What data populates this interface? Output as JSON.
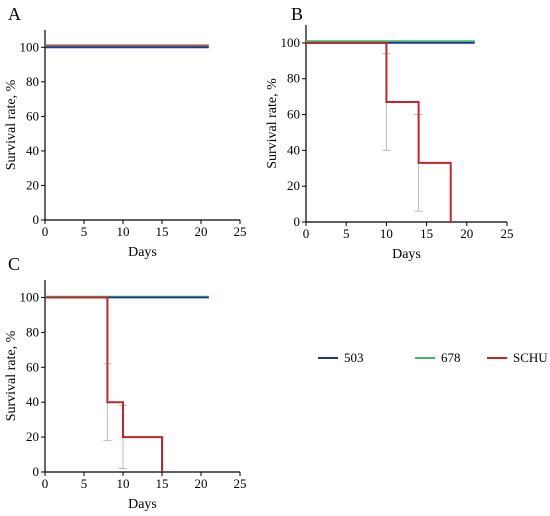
{
  "colors": {
    "s503": "#2b2f8f",
    "s678": "#3cb86a",
    "schu": "#c0262b",
    "errbar": "#bbbbbb"
  },
  "legend": [
    {
      "name": "503",
      "color": "#2b2f8f"
    },
    {
      "name": "678",
      "color": "#3cb86a"
    },
    {
      "name": "SCHU",
      "color": "#c0262b"
    }
  ],
  "chart_data": [
    {
      "panel": "A",
      "type": "line",
      "xlabel": "Days",
      "ylabel": "Survival rate, %",
      "xlim": [
        0,
        25
      ],
      "ylim": [
        0,
        110
      ],
      "xticks": [
        0,
        5,
        10,
        15,
        20,
        25
      ],
      "yticks": [
        0,
        20,
        40,
        60,
        80,
        100
      ],
      "series": [
        {
          "name": "SCHU",
          "x": [
            0,
            21
          ],
          "y": [
            101,
            101
          ]
        },
        {
          "name": "678",
          "x": [
            0,
            21
          ],
          "y": [
            100.5,
            100.5
          ]
        },
        {
          "name": "503",
          "x": [
            0,
            21
          ],
          "y": [
            100,
            100
          ]
        }
      ],
      "errorbars": []
    },
    {
      "panel": "B",
      "type": "line",
      "xlabel": "Days",
      "ylabel": "Survival rate, %",
      "xlim": [
        0,
        25
      ],
      "ylim": [
        0,
        110
      ],
      "xticks": [
        0,
        5,
        10,
        15,
        20,
        25
      ],
      "yticks": [
        0,
        20,
        40,
        60,
        80,
        100
      ],
      "series": [
        {
          "name": "678",
          "x": [
            0,
            21
          ],
          "y": [
            101,
            101
          ]
        },
        {
          "name": "503",
          "x": [
            0,
            21
          ],
          "y": [
            100,
            100
          ]
        },
        {
          "name": "SCHU",
          "x": [
            0,
            10,
            10,
            14,
            14,
            18,
            18
          ],
          "y": [
            100,
            100,
            67,
            67,
            33,
            33,
            0
          ]
        }
      ],
      "errorbars": [
        {
          "x": 10,
          "low": 40,
          "high": 94
        },
        {
          "x": 14,
          "low": 6,
          "high": 60
        }
      ]
    },
    {
      "panel": "C",
      "type": "line",
      "xlabel": "Days",
      "ylabel": "Survival rate, %",
      "xlim": [
        0,
        25
      ],
      "ylim": [
        0,
        110
      ],
      "xticks": [
        0,
        5,
        10,
        15,
        20,
        25
      ],
      "yticks": [
        0,
        20,
        40,
        60,
        80,
        100
      ],
      "series": [
        {
          "name": "678",
          "x": [
            0,
            21
          ],
          "y": [
            100.5,
            100.5
          ]
        },
        {
          "name": "503",
          "x": [
            0,
            21
          ],
          "y": [
            100,
            100
          ]
        },
        {
          "name": "SCHU",
          "x": [
            0,
            8,
            8,
            10,
            10,
            15,
            15
          ],
          "y": [
            100,
            100,
            40,
            40,
            20,
            20,
            0
          ]
        }
      ],
      "errorbars": [
        {
          "x": 8,
          "low": 18,
          "high": 62
        },
        {
          "x": 10,
          "low": 2,
          "high": 38
        }
      ]
    }
  ]
}
